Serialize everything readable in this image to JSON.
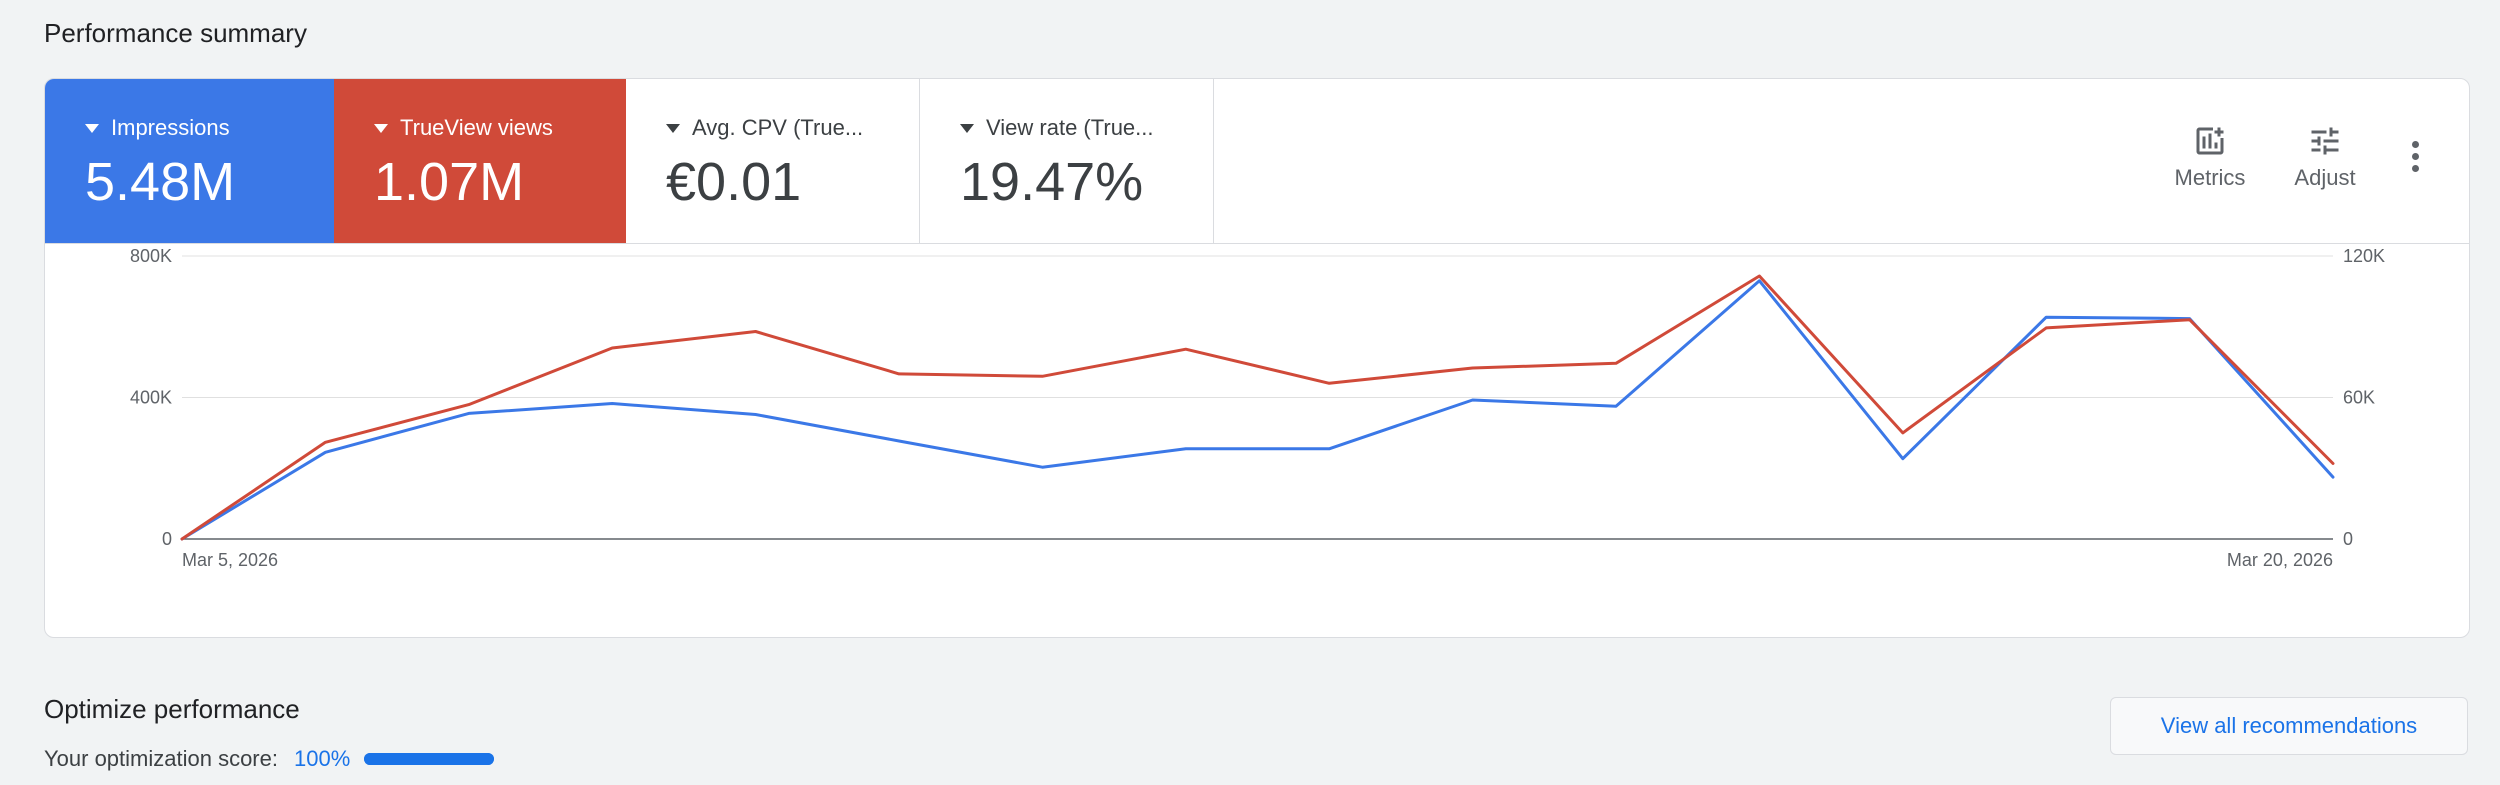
{
  "page": {
    "performance_title": "Performance summary",
    "optimize_title": "Optimize performance"
  },
  "metrics": [
    {
      "label": "Impressions",
      "value": "5.48M",
      "color": "#3b78e7"
    },
    {
      "label": "TrueView views",
      "value": "1.07M",
      "color": "#d04a39"
    },
    {
      "label": "Avg. CPV (True...",
      "value": "€0.01"
    },
    {
      "label": "View rate (True...",
      "value": "19.47%"
    }
  ],
  "toolbar": {
    "metrics_label": "Metrics",
    "adjust_label": "Adjust",
    "more_icon": "more-vert-icon"
  },
  "optimization": {
    "score_label": "Your optimization score:",
    "score_value": "100%",
    "score_fraction": 1.0,
    "view_all_label": "View all recommendations"
  },
  "chart_data": {
    "type": "line",
    "x": [
      "Mar 5, 2026",
      "Mar 6, 2026",
      "Mar 7, 2026",
      "Mar 8, 2026",
      "Mar 9, 2026",
      "Mar 10, 2026",
      "Mar 11, 2026",
      "Mar 12, 2026",
      "Mar 13, 2026",
      "Mar 14, 2026",
      "Mar 15, 2026",
      "Mar 16, 2026",
      "Mar 17, 2026",
      "Mar 18, 2026",
      "Mar 19, 2026",
      "Mar 20, 2026"
    ],
    "x_tick_labels": [
      "Mar 5, 2026",
      "Mar 20, 2026"
    ],
    "left_axis": {
      "ticks": [
        "0",
        "400K",
        "800K"
      ],
      "ylim": [
        0,
        800000
      ]
    },
    "right_axis": {
      "ticks": [
        "0",
        "60K",
        "120K"
      ],
      "ylim": [
        0,
        120000
      ]
    },
    "grid": true,
    "series": [
      {
        "name": "Impressions",
        "axis": "left",
        "color": "#3b78e7",
        "values": [
          0,
          245000,
          355000,
          383000,
          352000,
          277000,
          203000,
          255000,
          255000,
          393000,
          375000,
          730000,
          227000,
          627000,
          623000,
          175000
        ]
      },
      {
        "name": "TrueView views",
        "axis": "right",
        "color": "#d04a39",
        "values": [
          0,
          41000,
          57000,
          81000,
          88000,
          70000,
          69000,
          80500,
          66000,
          72500,
          74500,
          111500,
          45000,
          89500,
          93000,
          32000
        ]
      }
    ]
  }
}
